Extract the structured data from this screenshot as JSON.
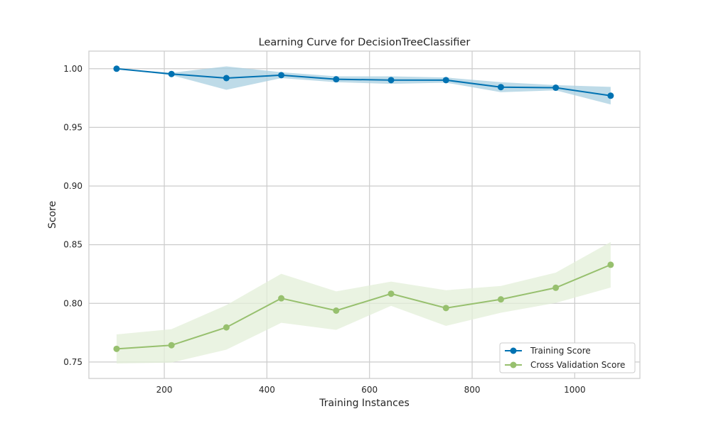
{
  "chart_data": {
    "type": "line",
    "title": "Learning Curve for DecisionTreeClassifier",
    "xlabel": "Training Instances",
    "ylabel": "Score",
    "xlim": [
      53,
      1127
    ],
    "ylim": [
      0.736,
      1.015
    ],
    "xticks": [
      200,
      400,
      600,
      800,
      1000
    ],
    "xtick_labels": [
      "200",
      "400",
      "600",
      "800",
      "1000"
    ],
    "yticks": [
      0.75,
      0.8,
      0.85,
      0.9,
      0.95,
      1.0
    ],
    "ytick_labels": [
      "0.75",
      "0.80",
      "0.85",
      "0.90",
      "0.95",
      "1.00"
    ],
    "grid": true,
    "legend_position": "lower-right",
    "x": [
      107,
      214,
      321,
      428,
      535,
      642,
      749,
      856,
      963,
      1070
    ],
    "series": [
      {
        "name": "Training Score",
        "color": "#0072b2",
        "band_color": "#a8cfe0",
        "values": [
          1.0,
          0.9955,
          0.992,
          0.9945,
          0.991,
          0.9903,
          0.9903,
          0.9843,
          0.9838,
          0.977
        ],
        "upper": [
          1.0,
          0.9965,
          1.002,
          0.997,
          0.9935,
          0.9935,
          0.9925,
          0.9885,
          0.986,
          0.9845
        ],
        "lower": [
          1.0,
          0.9945,
          0.982,
          0.992,
          0.9885,
          0.9871,
          0.9881,
          0.98,
          0.9816,
          0.9695
        ]
      },
      {
        "name": "Cross Validation Score",
        "color": "#97c06e",
        "band_color": "#e3efd8",
        "values": [
          0.7612,
          0.7643,
          0.7795,
          0.8043,
          0.7938,
          0.8082,
          0.796,
          0.8034,
          0.8133,
          0.8329
        ],
        "upper": [
          0.7735,
          0.778,
          0.7985,
          0.8252,
          0.8102,
          0.8185,
          0.8112,
          0.8148,
          0.8262,
          0.8523
        ],
        "lower": [
          0.7488,
          0.7495,
          0.7605,
          0.7834,
          0.7774,
          0.7979,
          0.7808,
          0.792,
          0.8004,
          0.8135
        ]
      }
    ]
  }
}
